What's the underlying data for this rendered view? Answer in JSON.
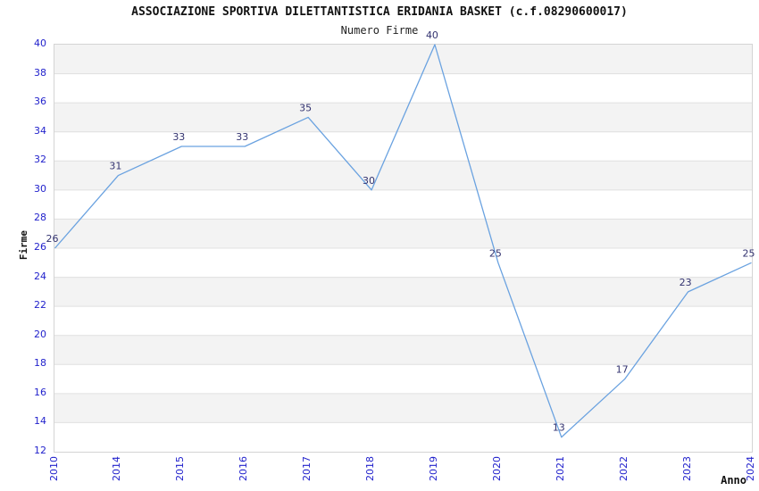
{
  "chart_data": {
    "type": "line",
    "title": "ASSOCIAZIONE SPORTIVA DILETTANTISTICA ERIDANIA BASKET (c.f.08290600017)",
    "subtitle": "Numero Firme",
    "xlabel": "Anno",
    "ylabel": "Firme",
    "categories": [
      "2010",
      "2014",
      "2015",
      "2016",
      "2017",
      "2018",
      "2019",
      "2020",
      "2021",
      "2022",
      "2023",
      "2024"
    ],
    "values": [
      26,
      31,
      33,
      33,
      35,
      30,
      40,
      25,
      13,
      17,
      23,
      25
    ],
    "ylim": [
      12,
      40
    ],
    "ytick_step": 2,
    "grid": "horizontal-bands",
    "legend": "none",
    "point_labels_visible": true,
    "colors": {
      "line": "#6aa2e0",
      "tick_label": "#2222cc",
      "point_label": "#333370",
      "band_fill": "#f3f3f3",
      "grid_line": "#e0e0e0",
      "plot_border": "#d4d4d4",
      "title_text": "#111111",
      "background": "#ffffff"
    }
  }
}
